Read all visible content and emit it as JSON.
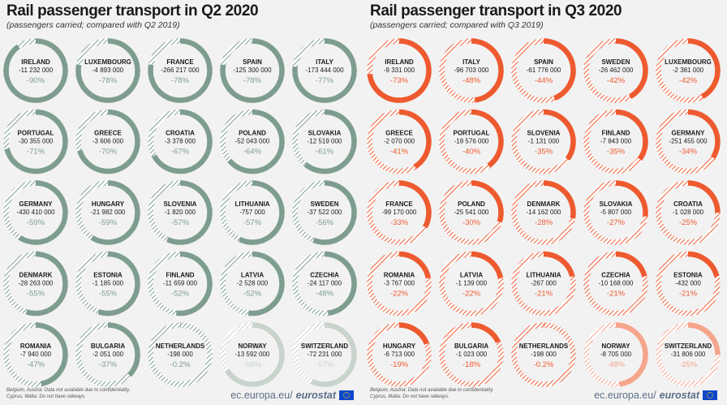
{
  "colors": {
    "q2_base": "#7e9d8f",
    "q3_base": "#ee5a2f",
    "note_light_q2": "#c8d3cc",
    "note_light_q3": "#f6a58d"
  },
  "footer": {
    "notes": [
      "Belgium, Austria: Data not available due to confidentiality.",
      "Cyprus, Malta: Do not have railways."
    ],
    "brand_prefix": "ec.europa.eu/",
    "brand_bold": "eurostat"
  },
  "chart_data": [
    {
      "type": "donut",
      "title": "Rail passenger transport in Q2 2020",
      "subtitle": "(passengers carried; compared with Q2 2019)",
      "series": [
        {
          "country": "IRELAND",
          "change": "-11 232 000",
          "pct_label": "-90%",
          "pct": -90
        },
        {
          "country": "LUXEMBOURG",
          "change": "-4 893 000",
          "pct_label": "-78%",
          "pct": -78
        },
        {
          "country": "FRANCE",
          "change": "-266 217 000",
          "pct_label": "-78%",
          "pct": -78
        },
        {
          "country": "SPAIN",
          "change": "-125 300 000",
          "pct_label": "-78%",
          "pct": -78
        },
        {
          "country": "ITALY",
          "change": "-173 444 000",
          "pct_label": "-77%",
          "pct": -77
        },
        {
          "country": "PORTUGAL",
          "change": "-30 355 000",
          "pct_label": "-71%",
          "pct": -71
        },
        {
          "country": "GREECE",
          "change": "-3 606 000",
          "pct_label": "-70%",
          "pct": -70
        },
        {
          "country": "CROATIA",
          "change": "-3 378 000",
          "pct_label": "-67%",
          "pct": -67
        },
        {
          "country": "POLAND",
          "change": "-52 043 000",
          "pct_label": "-64%",
          "pct": -64
        },
        {
          "country": "SLOVAKIA",
          "change": "-12 519 000",
          "pct_label": "-61%",
          "pct": -61
        },
        {
          "country": "GERMANY",
          "change": "-430 410 000",
          "pct_label": "-59%",
          "pct": -59
        },
        {
          "country": "HUNGARY",
          "change": "-21 982 000",
          "pct_label": "-59%",
          "pct": -59
        },
        {
          "country": "SLOVENIA",
          "change": "-1 820 000",
          "pct_label": "-57%",
          "pct": -57
        },
        {
          "country": "LITHUANIA",
          "change": "-757 000",
          "pct_label": "-57%",
          "pct": -57
        },
        {
          "country": "SWEDEN",
          "change": "-37 522 000",
          "pct_label": "-56%",
          "pct": -56
        },
        {
          "country": "DENMARK",
          "change": "-28 263 000",
          "pct_label": "-55%",
          "pct": -55
        },
        {
          "country": "ESTONIA",
          "change": "-1 185 000",
          "pct_label": "-55%",
          "pct": -55
        },
        {
          "country": "FINLAND",
          "change": "-11 659 000",
          "pct_label": "-52%",
          "pct": -52
        },
        {
          "country": "LATVIA",
          "change": "-2 528 000",
          "pct_label": "-52%",
          "pct": -52
        },
        {
          "country": "CZECHIA",
          "change": "-24 117 000",
          "pct_label": "-48%",
          "pct": -48
        },
        {
          "country": "ROMANIA",
          "change": "-7 940 000",
          "pct_label": "-47%",
          "pct": -47
        },
        {
          "country": "BULGARIA",
          "change": "-2 051 000",
          "pct_label": "-37%",
          "pct": -37
        },
        {
          "country": "NETHERLANDS",
          "change": "-198 000",
          "pct_label": "-0.2%",
          "pct": -0.2
        },
        {
          "country": "NORWAY",
          "change": "-13 592 000",
          "pct_label": "-66%",
          "pct": -66,
          "light": true
        },
        {
          "country": "SWITZERLAND",
          "change": "-72 231 000",
          "pct_label": "-57%",
          "pct": -57,
          "light": true
        }
      ]
    },
    {
      "type": "donut",
      "title": "Rail passenger transport in Q3 2020",
      "subtitle": "(passengers carried; compared with Q3 2019)",
      "series": [
        {
          "country": "IRELAND",
          "change": "-9 331 000",
          "pct_label": "-73%",
          "pct": -73
        },
        {
          "country": "ITALY",
          "change": "-96 703 000",
          "pct_label": "-48%",
          "pct": -48
        },
        {
          "country": "SPAIN",
          "change": "-61 776 000",
          "pct_label": "-44%",
          "pct": -44
        },
        {
          "country": "SWEDEN",
          "change": "-26 462 000",
          "pct_label": "-42%",
          "pct": -42
        },
        {
          "country": "LUXEMBOURG",
          "change": "-2 381 000",
          "pct_label": "-42%",
          "pct": -42
        },
        {
          "country": "GREECE",
          "change": "-2 070 000",
          "pct_label": "-41%",
          "pct": -41
        },
        {
          "country": "PORTUGAL",
          "change": "-18 576 000",
          "pct_label": "-40%",
          "pct": -40
        },
        {
          "country": "SLOVENIA",
          "change": "-1 131 000",
          "pct_label": "-35%",
          "pct": -35
        },
        {
          "country": "FINLAND",
          "change": "-7 843 000",
          "pct_label": "-35%",
          "pct": -35
        },
        {
          "country": "GERMANY",
          "change": "-251 455 000",
          "pct_label": "-34%",
          "pct": -34
        },
        {
          "country": "FRANCE",
          "change": "-99 170 000",
          "pct_label": "-33%",
          "pct": -33
        },
        {
          "country": "POLAND",
          "change": "-25 541 000",
          "pct_label": "-30%",
          "pct": -30
        },
        {
          "country": "DENMARK",
          "change": "-14 162 000",
          "pct_label": "-28%",
          "pct": -28
        },
        {
          "country": "SLOVAKIA",
          "change": "-5 807 000",
          "pct_label": "-27%",
          "pct": -27
        },
        {
          "country": "CROATIA",
          "change": "-1 028 000",
          "pct_label": "-25%",
          "pct": -25
        },
        {
          "country": "ROMANIA",
          "change": "-3 767 000",
          "pct_label": "-22%",
          "pct": -22
        },
        {
          "country": "LATVIA",
          "change": "-1 139 000",
          "pct_label": "-22%",
          "pct": -22
        },
        {
          "country": "LITHUANIA",
          "change": "-267 000",
          "pct_label": "-21%",
          "pct": -21
        },
        {
          "country": "CZECHIA",
          "change": "-10 168 000",
          "pct_label": "-21%",
          "pct": -21
        },
        {
          "country": "ESTONIA",
          "change": "-432 000",
          "pct_label": "-21%",
          "pct": -21
        },
        {
          "country": "HUNGARY",
          "change": "-6 713 000",
          "pct_label": "-19%",
          "pct": -19
        },
        {
          "country": "BULGARIA",
          "change": "-1 023 000",
          "pct_label": "-18%",
          "pct": -18
        },
        {
          "country": "NETHERLANDS",
          "change": "-198 000",
          "pct_label": "-0.2%",
          "pct": -0.2
        },
        {
          "country": "NORWAY",
          "change": "-8 705 000",
          "pct_label": "-48%",
          "pct": -48,
          "light": true
        },
        {
          "country": "SWITZERLAND",
          "change": "-31 806 000",
          "pct_label": "-25%",
          "pct": -25,
          "light": true
        }
      ]
    }
  ]
}
